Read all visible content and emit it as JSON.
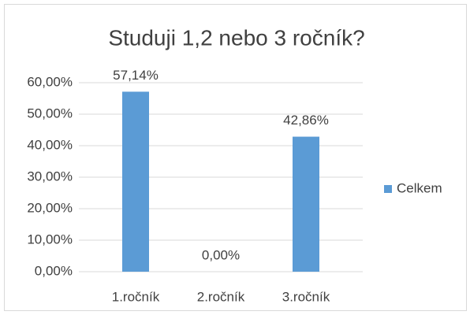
{
  "chart_data": {
    "type": "bar",
    "title": "Studuji 1,2 nebo 3 ročník?",
    "categories": [
      "1.ročník",
      "2.ročník",
      "3.ročník"
    ],
    "series": [
      {
        "name": "Celkem",
        "color": "#5b9bd5",
        "values": [
          57.14,
          0,
          42.86
        ],
        "value_labels": [
          "57,14%",
          "0,00%",
          "42,86%"
        ]
      }
    ],
    "ylim": [
      0,
      60
    ],
    "yticks": [
      {
        "value": 0,
        "label": "0,00%"
      },
      {
        "value": 10,
        "label": "10,00%"
      },
      {
        "value": 20,
        "label": "20,00%"
      },
      {
        "value": 30,
        "label": "30,00%"
      },
      {
        "value": 40,
        "label": "40,00%"
      },
      {
        "value": 50,
        "label": "50,00%"
      },
      {
        "value": 60,
        "label": "60,00%"
      }
    ],
    "grid": true,
    "legend": "right"
  }
}
